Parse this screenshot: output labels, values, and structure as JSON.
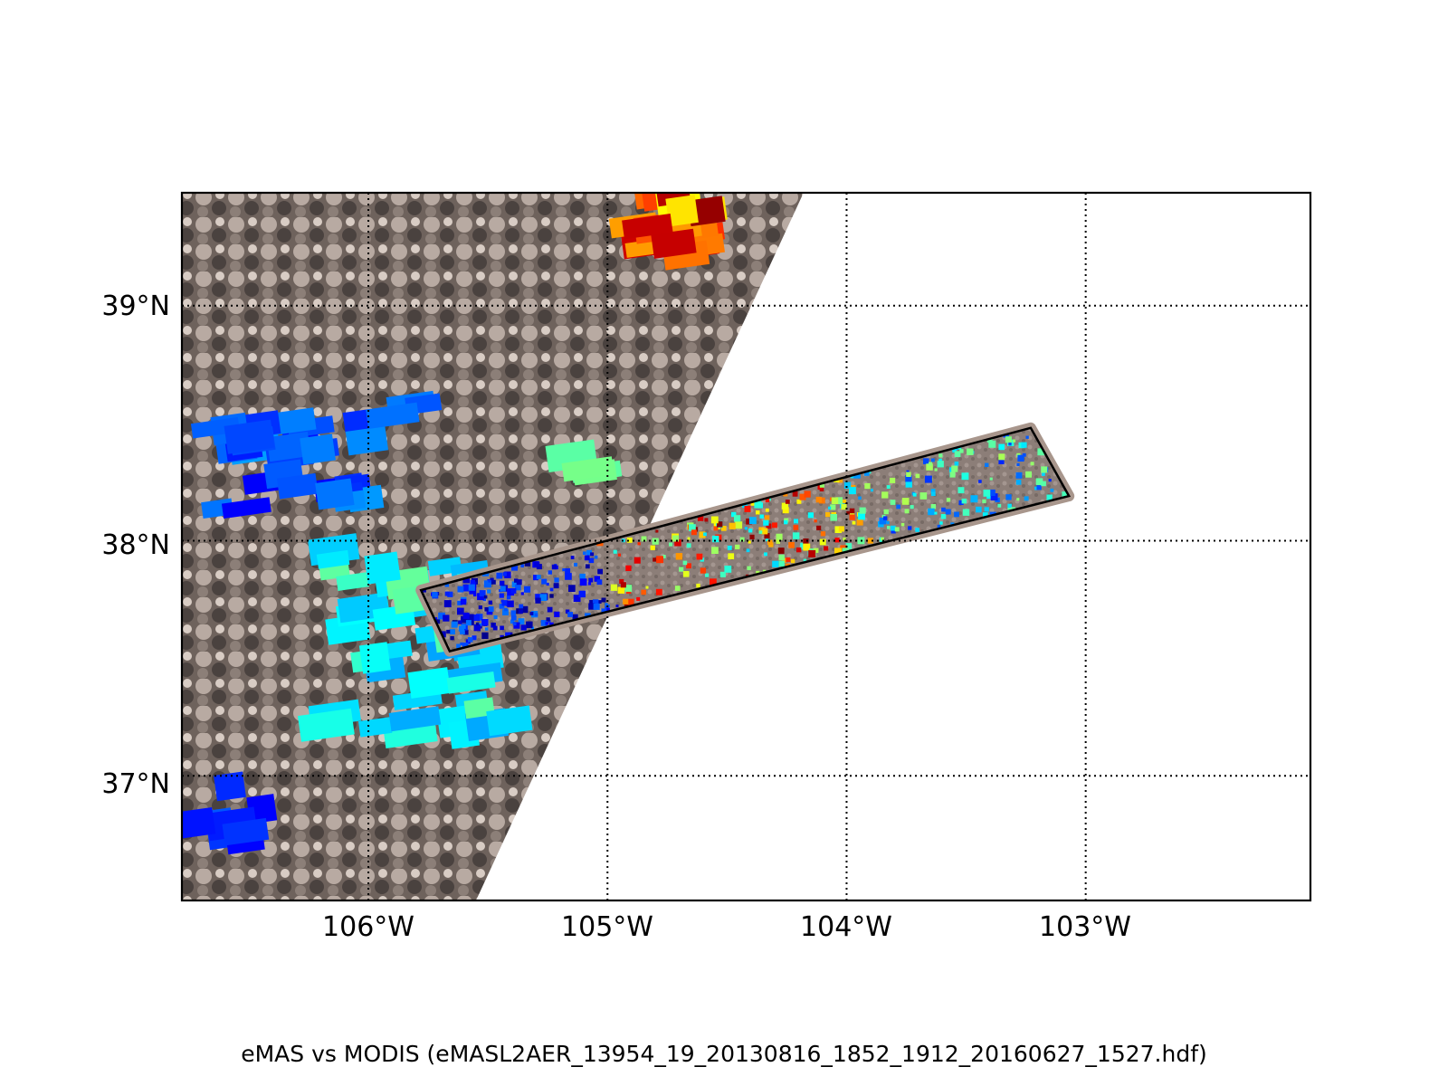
{
  "map": {
    "lon_range": [
      -106.78,
      -102.06
    ],
    "lat_range": [
      36.47,
      39.48
    ],
    "grid_longitudes": [
      -106,
      -105,
      -104,
      -103
    ],
    "grid_latitudes": [
      39,
      38,
      37
    ],
    "lat_labels": [
      "39°N",
      "38°N",
      "37°N"
    ],
    "lon_labels": [
      "106°W",
      "105°W",
      "104°W",
      "103°W"
    ],
    "grid_style": "dotted black",
    "modis_swath_edge": [
      [
        -104.18,
        39.48
      ],
      [
        -105.55,
        36.47
      ]
    ],
    "emas_swath_corners": [
      [
        -105.78,
        37.79
      ],
      [
        -103.23,
        38.48
      ],
      [
        -103.07,
        38.19
      ],
      [
        -105.66,
        37.53
      ]
    ],
    "colormap": "jet"
  },
  "caption": "eMAS vs MODIS (eMASL2AER_13954_19_20130816_1852_1912_20160627_1527.hdf)"
}
